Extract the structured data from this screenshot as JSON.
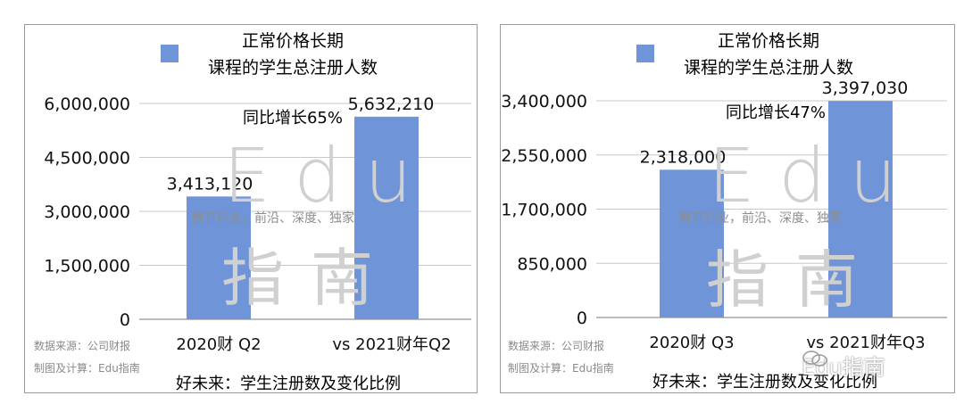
{
  "colors": {
    "bar": "#6f95d8",
    "grid": "#c8c8c8",
    "axis": "#7a7a7a",
    "text": "#111111"
  },
  "panels": [
    {
      "legend": {
        "line1": "正常价格长期",
        "line2": "课程的学生总注册人数"
      },
      "annotation": "同比增长65%",
      "sources": [
        "数据来源：公司财报",
        "制图及计算：Edu指南"
      ],
      "caption": "好未来：学生注册数及变化比例",
      "watermark": {
        "latin": "Edu",
        "cjk": "指南",
        "tagline": "教育行业，前沿、深度、独家"
      }
    },
    {
      "legend": {
        "line1": "正常价格长期",
        "line2": "课程的学生总注册人数"
      },
      "annotation": "同比增长47%",
      "sources": [
        "数据来源：公司财报",
        "制图及计算：Edu指南"
      ],
      "caption": "好未来：学生注册数及变化比例",
      "watermark": {
        "latin": "Edu",
        "cjk": "指南",
        "tagline": "教育行业，前沿、深度、独家"
      }
    }
  ],
  "footer_brand": "Edu指南",
  "chart_data": [
    {
      "type": "bar",
      "categories": [
        "2020财 Q2",
        "vs 2021财年Q2"
      ],
      "series": [
        {
          "name": "正常价格长期 课程的学生总注册人数",
          "values": [
            3413120,
            5632210
          ]
        }
      ],
      "data_labels": [
        "3,413,120",
        "5,632,210"
      ],
      "yticks": [
        0,
        1500000,
        3000000,
        4500000,
        6000000
      ],
      "ytick_labels": [
        "0",
        "1,500,000",
        "3,000,000",
        "4,500,000",
        "6,000,000"
      ],
      "ylim": [
        0,
        6000000
      ],
      "grid": true,
      "legend_position": "top-left"
    },
    {
      "type": "bar",
      "categories": [
        "2020财 Q3",
        "vs 2021财年Q3"
      ],
      "series": [
        {
          "name": "正常价格长期 课程的学生总注册人数",
          "values": [
            2318000,
            3397030
          ]
        }
      ],
      "data_labels": [
        "2,318,000",
        "3,397,030"
      ],
      "yticks": [
        0,
        850000,
        1700000,
        2550000,
        3400000
      ],
      "ytick_labels": [
        "0",
        "850,000",
        "1,700,000",
        "2,550,000",
        "3,400,000"
      ],
      "ylim": [
        0,
        3400000
      ],
      "grid": true,
      "legend_position": "top-left"
    }
  ]
}
